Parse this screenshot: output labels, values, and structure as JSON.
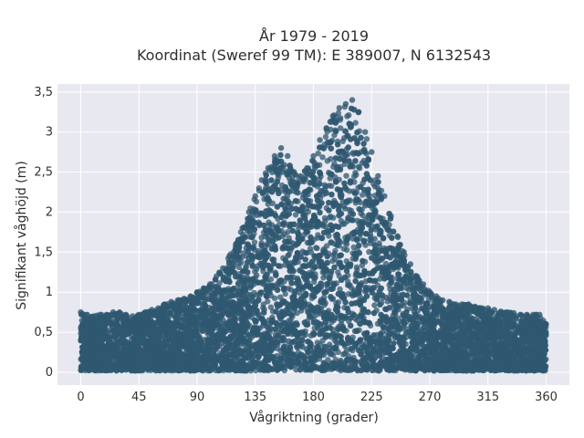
{
  "chart_data": {
    "type": "scatter",
    "title_line1": "År 1979 - 2019",
    "title_line2": "Koordinat (Sweref 99 TM): E 389007, N 6132543",
    "xlabel": "Vågriktning (grader)",
    "ylabel": "Signifikant våghöjd (m)",
    "xlim": [
      -18,
      378
    ],
    "ylim": [
      -0.16,
      3.6
    ],
    "x_ticks": [
      0,
      45,
      90,
      135,
      180,
      225,
      270,
      315,
      360
    ],
    "x_tick_labels": [
      "0",
      "45",
      "90",
      "135",
      "180",
      "225",
      "270",
      "315",
      "360"
    ],
    "y_ticks": [
      0,
      0.5,
      1,
      1.5,
      2,
      2.5,
      3,
      3.5
    ],
    "y_tick_labels": [
      "0",
      "0,5",
      "1",
      "1,5",
      "2",
      "2,5",
      "3",
      "3,5"
    ],
    "grid": true,
    "colors": {
      "background": "#e8e8f0",
      "grid": "#ffffff",
      "marker": "#2f5870"
    },
    "series": [
      {
        "x": [
          0,
          5,
          10,
          15,
          20,
          25,
          30,
          35,
          40,
          45,
          50,
          55,
          60,
          65,
          70,
          75,
          80,
          85,
          90,
          95,
          100,
          105,
          110,
          115,
          120,
          125,
          130,
          135,
          140,
          145,
          150,
          155,
          160,
          165,
          170,
          175,
          180,
          185,
          190,
          195,
          200,
          205,
          210,
          215,
          220,
          225,
          230,
          235,
          240,
          245,
          250,
          255,
          260,
          265,
          270,
          275,
          280,
          285,
          290,
          295,
          300,
          305,
          310,
          315,
          320,
          325,
          330,
          335,
          340,
          345,
          350,
          355,
          360
        ],
        "y_max": [
          0.75,
          0.72,
          0.7,
          0.72,
          0.72,
          0.75,
          0.75,
          0.72,
          0.7,
          0.72,
          0.75,
          0.78,
          0.8,
          0.85,
          0.88,
          0.9,
          0.92,
          0.95,
          1.0,
          1.05,
          1.1,
          1.2,
          1.3,
          1.45,
          1.6,
          1.8,
          2.0,
          2.2,
          2.4,
          2.55,
          2.7,
          2.8,
          2.7,
          2.5,
          2.45,
          2.55,
          2.7,
          2.9,
          3.05,
          3.2,
          3.3,
          3.35,
          3.4,
          3.25,
          3.0,
          2.75,
          2.45,
          2.2,
          1.95,
          1.7,
          1.5,
          1.35,
          1.2,
          1.1,
          1.0,
          0.95,
          0.9,
          0.88,
          0.85,
          0.85,
          0.85,
          0.82,
          0.8,
          0.8,
          0.78,
          0.76,
          0.75,
          0.74,
          0.72,
          0.72,
          0.72,
          0.72,
          0.6
        ],
        "y_min": 0.02
      }
    ]
  }
}
